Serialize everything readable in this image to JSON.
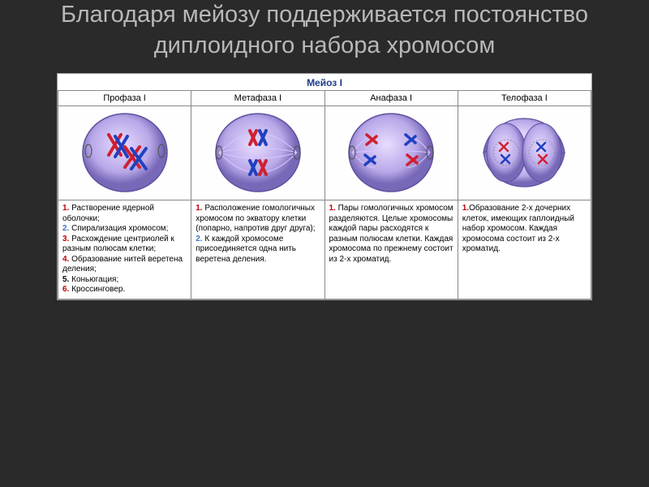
{
  "title": "Благодаря мейозу поддерживается постоянство диплоидного набора хромосом",
  "table": {
    "caption": "Мейоз I",
    "columns": [
      "Профаза I",
      "Метафаза I",
      "Анафаза I",
      "Телофаза I"
    ],
    "cells": {
      "prophase": {
        "items": [
          {
            "n": "1.",
            "cls": "n1",
            "text": " Растворение ядерной оболочки;"
          },
          {
            "n": "2.",
            "cls": "n2",
            "text": " Спирализация хромосом;"
          },
          {
            "n": "3.",
            "cls": "n3",
            "text": " Расхождение центриолей к разным полюсам клетки;"
          },
          {
            "n": "4.",
            "cls": "n4",
            "text": " Образование нитей веретена деления;"
          },
          {
            "n": "5.",
            "cls": "n5",
            "text": " Коньюгация;"
          },
          {
            "n": "6.",
            "cls": "n6",
            "text": " Кроссинговер."
          }
        ]
      },
      "metaphase": {
        "items": [
          {
            "n": "1.",
            "cls": "n1",
            "text": " Расположение гомологичных хромосом по экватору клетки (попарно, напротив друг друга);"
          },
          {
            "n": "2.",
            "cls": "n2",
            "text": " К каждой хромосоме присоединяется одна нить веретена деления."
          }
        ]
      },
      "anaphase": {
        "items": [
          {
            "n": "1.",
            "cls": "n1",
            "text": " Пары гомологичных хромосом разделяются. Целые хромосомы каждой пары расходятся к разным полюсам клетки. Каждая хромосома по прежнему состоит из 2-х хроматид."
          }
        ]
      },
      "telophase": {
        "items": [
          {
            "n": "1.",
            "cls": "n1",
            "text": "Образование 2-х дочерних клеток, имеющих гаплоидный набор хромосом. Каждая хромосома состоит из 2-х хроматид."
          }
        ]
      }
    }
  },
  "style": {
    "bg": "#2a2a2a",
    "title_color": "#b8b8b8",
    "cell_fill": "#b8a8e8",
    "cell_stroke": "#6050a0",
    "chrom_red": "#d02030",
    "chrom_blue": "#2040c0",
    "spindle": "#c8b8f0"
  }
}
